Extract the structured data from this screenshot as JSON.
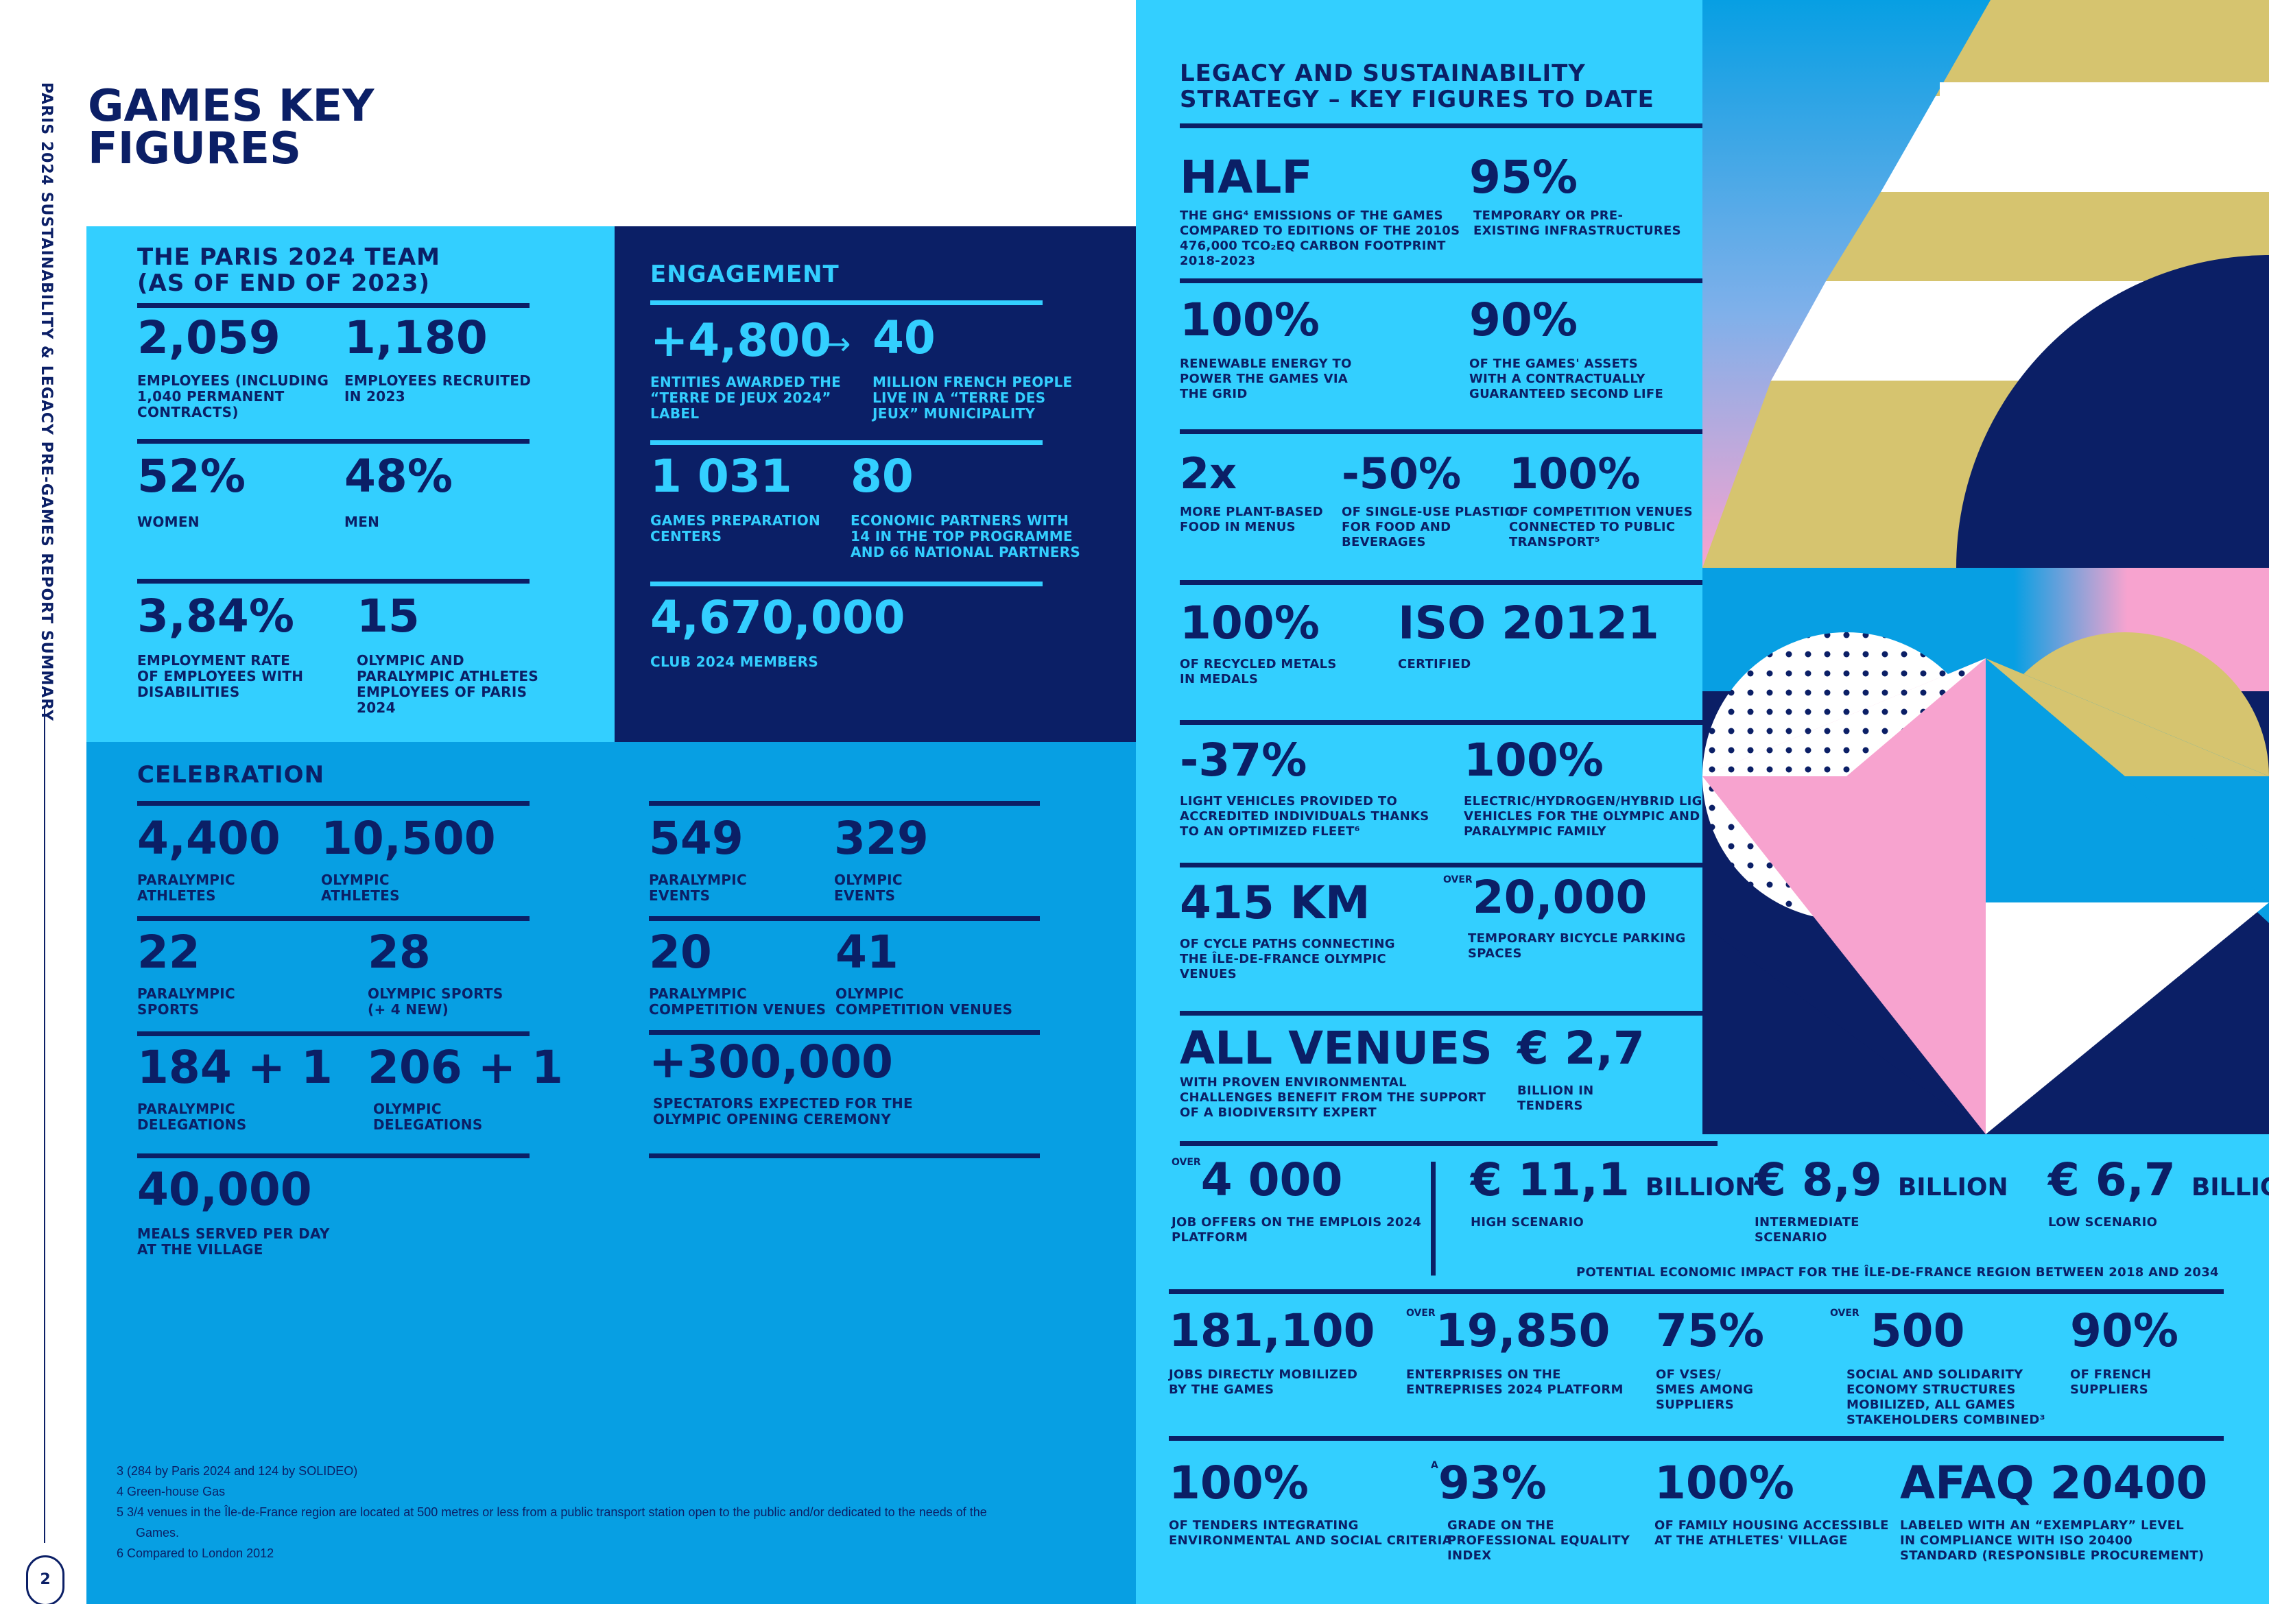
{
  "side_title": "PARIS 2024 SUSTAINABILITY & LEGACY PRE-GAMES REPORT SUMMARY",
  "page_number": "2",
  "main_title_line1": "GAMES KEY",
  "main_title_line2": "FIGURES",
  "team": {
    "title_line1": "THE PARIS 2024 TEAM",
    "title_line2": "(AS OF END OF 2023)",
    "s1_value": "2,059",
    "s1_l1": "EMPLOYEES (INCLUDING",
    "s1_l2": "1,040 PERMANENT",
    "s1_l3": "CONTRACTS)",
    "s2_value": "1,180",
    "s2_l1": "EMPLOYEES RECRUITED",
    "s2_l2": "IN 2023",
    "s3_value": "52%",
    "s3_l1": "WOMEN",
    "s4_value": "48%",
    "s4_l1": "MEN",
    "s5_value": "3,84%",
    "s5_l1": "EMPLOYMENT RATE",
    "s5_l2": "OF EMPLOYEES WITH",
    "s5_l3": "DISABILITIES",
    "s6_value": "15",
    "s6_l1": "OLYMPIC AND",
    "s6_l2": "PARALYMPIC ATHLETES",
    "s6_l3": "EMPLOYEES OF PARIS",
    "s6_l4": "2024"
  },
  "engagement": {
    "title": "ENGAGEMENT",
    "s1_value": "+4,800",
    "s1_l1": "ENTITIES AWARDED THE",
    "s1_l2": "“TERRE DE JEUX 2024”",
    "s1_l3": "LABEL",
    "arrow": "→",
    "s2_value": "40",
    "s2_l1": "MILLION FRENCH PEOPLE",
    "s2_l2": "LIVE IN A “TERRE DES",
    "s2_l3": "JEUX” MUNICIPALITY",
    "s3_value": "1 031",
    "s3_l1": "GAMES PREPARATION",
    "s3_l2": "CENTERS",
    "s4_value": "80",
    "s4_l1": "ECONOMIC PARTNERS WITH",
    "s4_l2": "14 IN THE TOP PROGRAMME",
    "s4_l3": "AND 66 NATIONAL PARTNERS",
    "s5_value": "4,670,000",
    "s5_l1": "CLUB 2024 MEMBERS"
  },
  "celebration": {
    "title": "CELEBRATION",
    "c1_value": "4,400",
    "c1_l1": "PARALYMPIC",
    "c1_l2": "ATHLETES",
    "c2_value": "10,500",
    "c2_l1": "OLYMPIC",
    "c2_l2": "ATHLETES",
    "c3_value": "22",
    "c3_l1": "PARALYMPIC",
    "c3_l2": "SPORTS",
    "c4_value": "28",
    "c4_l1": "OLYMPIC SPORTS",
    "c4_l2": "(+ 4 NEW)",
    "c5_value": "184 + 1",
    "c5_l1": "PARALYMPIC",
    "c5_l2": "DELEGATIONS",
    "c6_value": "206 + 1",
    "c6_l1": "OLYMPIC",
    "c6_l2": "DELEGATIONS",
    "c7_value": "40,000",
    "c7_l1": "MEALS SERVED PER DAY",
    "c7_l2": "AT THE VILLAGE",
    "c8_value": "549",
    "c8_l1": "PARALYMPIC",
    "c8_l2": "EVENTS",
    "c9_value": "329",
    "c9_l1": "OLYMPIC",
    "c9_l2": "EVENTS",
    "c10_value": "20",
    "c10_l1": "PARALYMPIC",
    "c10_l2": "COMPETITION VENUES",
    "c11_value": "41",
    "c11_l1": "OLYMPIC",
    "c11_l2": "COMPETITION VENUES",
    "c12_value": "+300,000",
    "c12_l1": "SPECTATORS EXPECTED FOR THE",
    "c12_l2": "OLYMPIC OPENING CEREMONY"
  },
  "footnotes": {
    "f3": "3    (284 by Paris 2024 and 124 by SOLIDEO)",
    "f4": "4    Green-house Gas",
    "f5a": "5    3/4 venues in the Île-de-France region are located at 500 metres or less from a public transport station open to the public and/or dedicated to the needs of the",
    "f5b": "Games.",
    "f6": "6    Compared to London 2012"
  },
  "legacy": {
    "title_line1": "LEGACY AND SUSTAINABILITY",
    "title_line2": "STRATEGY – KEY FIGURES TO DATE",
    "l1_value": "HALF",
    "l1_l1": "THE GHG⁴ EMISSIONS OF THE GAMES",
    "l1_l2": "COMPARED TO EDITIONS OF THE 2010S",
    "l1_l3": "476,000 TCO₂EQ CARBON FOOTPRINT",
    "l1_l4": "2018-2023",
    "l2_value": "95%",
    "l2_l1": "TEMPORARY OR PRE-",
    "l2_l2": "EXISTING INFRASTRUCTURES",
    "l3_value": "100%",
    "l3_l1": "RENEWABLE ENERGY TO",
    "l3_l2": "POWER THE GAMES VIA",
    "l3_l3": "THE GRID",
    "l4_value": "90%",
    "l4_l1": "OF THE GAMES' ASSETS",
    "l4_l2": "WITH A CONTRACTUALLY",
    "l4_l3": "GUARANTEED SECOND LIFE",
    "l5_value": "2x",
    "l5_l1": "MORE PLANT-BASED",
    "l5_l2": "FOOD IN MENUS",
    "l6_value": "-50%",
    "l6_l1": "OF SINGLE-USE PLASTIC",
    "l6_l2": "FOR FOOD AND",
    "l6_l3": "BEVERAGES",
    "l7_value": "100%",
    "l7_l1": "OF COMPETITION VENUES",
    "l7_l2": "CONNECTED TO PUBLIC",
    "l7_l3": "TRANSPORT⁵",
    "l8_value": "100%",
    "l8_l1": "OF RECYCLED METALS",
    "l8_l2": "IN MEDALS",
    "l9_value": "ISO 20121",
    "l9_l1": "CERTIFIED",
    "l10_value": "-37%",
    "l10_l1": "LIGHT VEHICLES PROVIDED TO",
    "l10_l2": "ACCREDITED INDIVIDUALS THANKS",
    "l10_l3": "TO AN OPTIMIZED FLEET⁶",
    "l11_value": "100%",
    "l11_l1": "ELECTRIC/HYDROGEN/HYBRID LIGHT",
    "l11_l2": "VEHICLES FOR THE OLYMPIC AND",
    "l11_l3": "PARALYMPIC FAMILY",
    "l12_value": "415 KM",
    "l12_l1": "OF CYCLE PATHS CONNECTING",
    "l12_l2": "THE ÎLE-DE-FRANCE OLYMPIC",
    "l12_l3": "VENUES",
    "l13_over": "OVER",
    "l13_value": "20,000",
    "l13_l1": "TEMPORARY BICYCLE PARKING",
    "l13_l2": "SPACES",
    "l14_value": "ALL VENUES",
    "l14_l1": "WITH PROVEN ENVIRONMENTAL",
    "l14_l2": "CHALLENGES BENEFIT FROM THE SUPPORT",
    "l14_l3": "OF A BIODIVERSITY EXPERT",
    "l15_value": "€ 2,7",
    "l15_l1": "BILLION IN",
    "l15_l2": "TENDERS"
  },
  "economy": {
    "e1_over": "OVER",
    "e1_value": "4 000",
    "e1_l1": "JOB OFFERS ON THE EMPLOIS 2024",
    "e1_l2": "PLATFORM",
    "e2_value": "€ 11,1",
    "e2_unit": "BILLION",
    "e2_l1": "HIGH SCENARIO",
    "e3_value": "€ 8,9",
    "e3_unit": "BILLION",
    "e3_l1": "INTERMEDIATE",
    "e3_l2": "SCENARIO",
    "e4_value": "€ 6,7",
    "e4_unit": "BILLION",
    "e4_l1": "LOW SCENARIO",
    "impact_caption": "POTENTIAL ECONOMIC IMPACT FOR THE ÎLE-DE-FRANCE REGION BETWEEN 2018 AND 2034",
    "e5_value": "181,100",
    "e5_l1": "JOBS DIRECTLY MOBILIZED",
    "e5_l2": "BY THE GAMES",
    "e6_over": "OVER",
    "e6_value": "19,850",
    "e6_l1": "ENTERPRISES ON THE",
    "e6_l2": "ENTREPRISES 2024 PLATFORM",
    "e7_value": "75%",
    "e7_l1": "OF VSES/",
    "e7_l2": "SMES AMONG",
    "e7_l3": "SUPPLIERS",
    "e8_over": "OVER",
    "e8_value": "500",
    "e8_l1": "SOCIAL AND SOLIDARITY",
    "e8_l2": "ECONOMY STRUCTURES",
    "e8_l3": "MOBILIZED, ALL GAMES",
    "e8_l4": "STAKEHOLDERS COMBINED³",
    "e9_value": "90%",
    "e9_l1": "OF FRENCH",
    "e9_l2": "SUPPLIERS",
    "e10_value": "100%",
    "e10_l1": "OF TENDERS INTEGRATING",
    "e10_l2": "ENVIRONMENTAL AND SOCIAL CRITERIA",
    "e11_pre": "A",
    "e11_value": "93%",
    "e11_l1": "GRADE ON THE",
    "e11_l2": "PROFESSIONAL EQUALITY",
    "e11_l3": "INDEX",
    "e12_value": "100%",
    "e12_l1": "OF FAMILY HOUSING ACCESSIBLE",
    "e12_l2": "AT THE ATHLETES' VILLAGE",
    "e13_value": "AFAQ 20400",
    "e13_l1": "LABELED WITH AN “EXEMPLARY” LEVEL",
    "e13_l2": "IN COMPLIANCE WITH ISO 20400",
    "e13_l3": "STANDARD (RESPONSIBLE PROCUREMENT)"
  },
  "colors": {
    "navy": "#0b1f66",
    "cyan": "#33cfff",
    "blue": "#079fe3",
    "gold": "#d6c46f",
    "pink": "#f7a3cf"
  }
}
